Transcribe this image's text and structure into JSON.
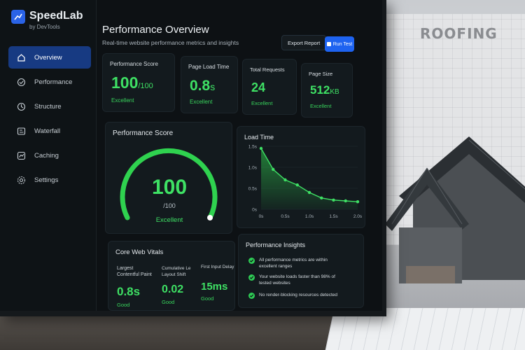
{
  "brand": {
    "name": "SpeedLab",
    "subtitle": "by DevTools"
  },
  "sidebar": {
    "items": [
      {
        "label": "Overview",
        "icon": "home-icon",
        "active": true
      },
      {
        "label": "Performance",
        "icon": "gauge-icon",
        "active": false
      },
      {
        "label": "Structure",
        "icon": "structure-icon",
        "active": false
      },
      {
        "label": "Waterfall",
        "icon": "waterfall-icon",
        "active": false
      },
      {
        "label": "Caching",
        "icon": "caching-icon",
        "active": false
      },
      {
        "label": "Settings",
        "icon": "gear-icon",
        "active": false
      }
    ]
  },
  "header": {
    "title": "Performance Overview",
    "subtitle": "Real-time website performance metrics and insights",
    "export_label": "Export Report",
    "run_label": "Run Test"
  },
  "stats": [
    {
      "label": "Performance Score",
      "value": "100",
      "unit": "/100",
      "status": "Excellent"
    },
    {
      "label": "Page Load Time",
      "value": "0.8",
      "unit": "s",
      "status": "Excellent"
    },
    {
      "label": "Total Requests",
      "value": "24",
      "unit": "",
      "status": "Excellent"
    },
    {
      "label": "Page Size",
      "value": "512",
      "unit": "KB",
      "status": "Excellent"
    }
  ],
  "gauge": {
    "title": "Performance Score",
    "value": "100",
    "max_label": "/100",
    "status": "Excellent",
    "fraction": 1.0
  },
  "chart_data": {
    "type": "area",
    "title": "Load Time",
    "x": [
      0,
      0.25,
      0.5,
      0.75,
      1.0,
      1.25,
      1.5,
      1.75,
      2.0
    ],
    "y": [
      1.45,
      0.95,
      0.7,
      0.58,
      0.4,
      0.27,
      0.22,
      0.2,
      0.18
    ],
    "xticks": [
      "0s",
      "0.5s",
      "1.0s",
      "1.5s",
      "2.0s"
    ],
    "yticks": [
      "0s",
      "0.5s",
      "1.0s",
      "1.5s"
    ],
    "xlim": [
      0,
      2.0
    ],
    "ylim": [
      0,
      1.5
    ],
    "grid": true
  },
  "vitals": {
    "title": "Core Web Vitals",
    "items": [
      {
        "label": "Largest Contentful Paint",
        "value": "0.8s",
        "status": "Good"
      },
      {
        "label": "Cumulative Le Layout Shift",
        "value": "0.02",
        "status": "Good"
      },
      {
        "label": "First Input Delay",
        "value": "15ms",
        "status": "Good"
      }
    ]
  },
  "insights": {
    "title": "Performance Insights",
    "items": [
      "All performance metrics are within excellent ranges",
      "Your website loads faster than 98% of tested websites",
      "No render-blocking resources detected"
    ]
  },
  "background": {
    "blueprint_text": "ROOFING"
  },
  "colors": {
    "accent": "#1e63f0",
    "good": "#3ee064",
    "background": "#0d1114"
  }
}
